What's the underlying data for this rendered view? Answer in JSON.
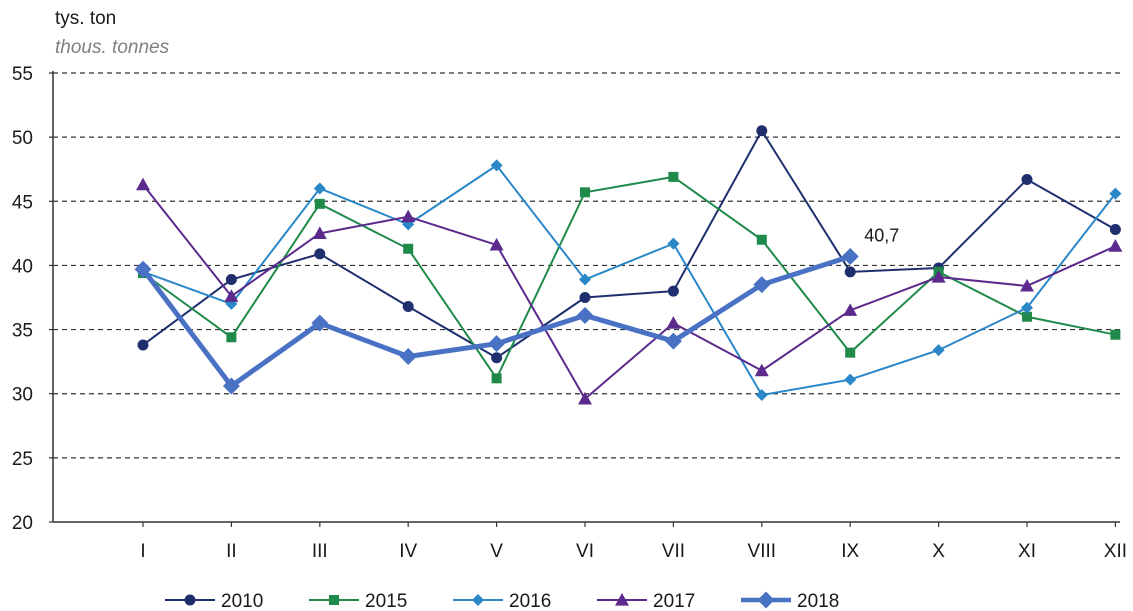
{
  "chart_data": {
    "type": "line",
    "ylabel": "tys. ton",
    "ylabel_en": "thous. tonnes",
    "ylim": [
      20,
      55
    ],
    "yticks": [
      20,
      25,
      30,
      35,
      40,
      45,
      50,
      55
    ],
    "grid": "horizontal dashed",
    "legend_position": "bottom",
    "categories": [
      "I",
      "II",
      "III",
      "IV",
      "V",
      "VI",
      "VII",
      "VIII",
      "IX",
      "X",
      "XI",
      "XII"
    ],
    "series": [
      {
        "name": "2010",
        "color": "#1f2f6e",
        "marker": "circle",
        "values": [
          33.8,
          38.9,
          40.9,
          36.8,
          32.8,
          37.5,
          38.0,
          50.5,
          39.5,
          39.8,
          46.7,
          42.8
        ]
      },
      {
        "name": "2015",
        "color": "#1f8a4a",
        "marker": "square",
        "values": [
          39.4,
          34.4,
          44.8,
          41.3,
          31.2,
          45.7,
          46.9,
          42.0,
          33.2,
          39.5,
          36.0,
          34.6
        ]
      },
      {
        "name": "2016",
        "color": "#2a87c8",
        "marker": "diamond",
        "values": [
          39.5,
          37.0,
          46.0,
          43.2,
          47.8,
          38.9,
          41.7,
          29.9,
          31.1,
          33.4,
          36.7,
          45.6
        ]
      },
      {
        "name": "2017",
        "color": "#5b2a8c",
        "marker": "triangle",
        "values": [
          46.3,
          37.6,
          42.5,
          43.8,
          41.6,
          29.6,
          35.5,
          31.8,
          36.5,
          39.1,
          38.4,
          41.5
        ]
      },
      {
        "name": "2018",
        "color": "#4a72c4",
        "marker": "diamond",
        "bold": true,
        "values": [
          39.7,
          30.6,
          35.5,
          32.9,
          33.9,
          36.1,
          34.1,
          38.5,
          40.7,
          null,
          null,
          null
        ]
      }
    ],
    "annotations": [
      {
        "series": "2018",
        "category": "IX",
        "text": "40,7"
      }
    ]
  }
}
